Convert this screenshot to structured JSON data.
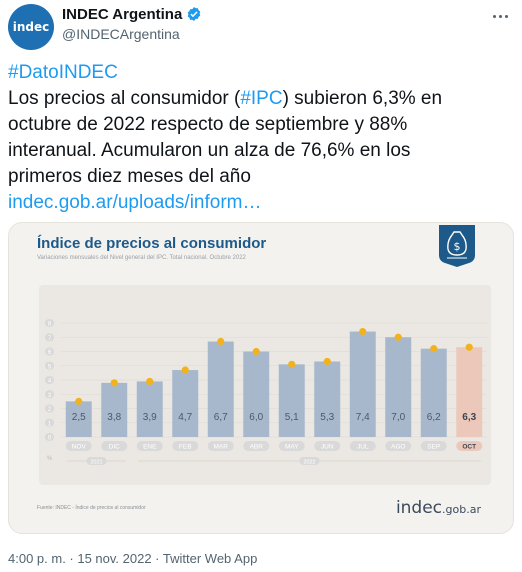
{
  "account": {
    "avatar_text": "indec",
    "display_name": "INDEC Argentina",
    "handle": "@INDECArgentina"
  },
  "tweet": {
    "hashtag": "#DatoINDEC",
    "line1_a": "Los precios al consumidor (",
    "line1_tag": "#IPC",
    "line1_b": ") subieron 6,3% en",
    "line2": "octubre de 2022 respecto de septiembre y 88%",
    "line3": "interanual. Acumularon un alza de 76,6% en los",
    "line4": "primeros diez meses del año",
    "link": "indec.gob.ar/uploads/inform…"
  },
  "card": {
    "brand_main": "indec",
    "brand_suffix": ".gob.ar",
    "source": "Fuente: INDEC - Índice de precios al consumidor"
  },
  "chart_data": {
    "type": "bar",
    "title": "Índice de precios al consumidor",
    "subtitle": "Variaciones mensuales del Nivel general del IPC. Total nacional. Octubre 2022",
    "categories": [
      "NOV",
      "DIC",
      "ENE",
      "FEB",
      "MAR",
      "ABR",
      "MAY",
      "JUN",
      "JUL",
      "AGO",
      "SEP",
      "OCT"
    ],
    "values": [
      2.5,
      3.8,
      3.9,
      4.7,
      6.7,
      6.0,
      5.1,
      5.3,
      7.4,
      7.0,
      6.2,
      6.3
    ],
    "value_labels": [
      "2,5",
      "3,8",
      "3,9",
      "4,7",
      "6,7",
      "6,0",
      "5,1",
      "5,3",
      "7,4",
      "7,0",
      "6,2",
      "6,3"
    ],
    "highlight_index": 11,
    "y_ticks": [
      "0",
      "1",
      "2",
      "3",
      "4",
      "5",
      "6",
      "7",
      "8"
    ],
    "y_unit": "%",
    "ylim": [
      0,
      8
    ],
    "years": [
      {
        "label": "2021",
        "from": 0,
        "to": 1
      },
      {
        "label": "2022",
        "from": 2,
        "to": 11
      }
    ],
    "colors": {
      "bar": "#a8b8cc",
      "highlight": "#ecc8bb",
      "marker": "#f2b21d",
      "axis_pill": "#d9d9d9"
    }
  },
  "footer": {
    "meta": "4:00 p. m. · 15 nov. 2022 · Twitter Web App"
  }
}
